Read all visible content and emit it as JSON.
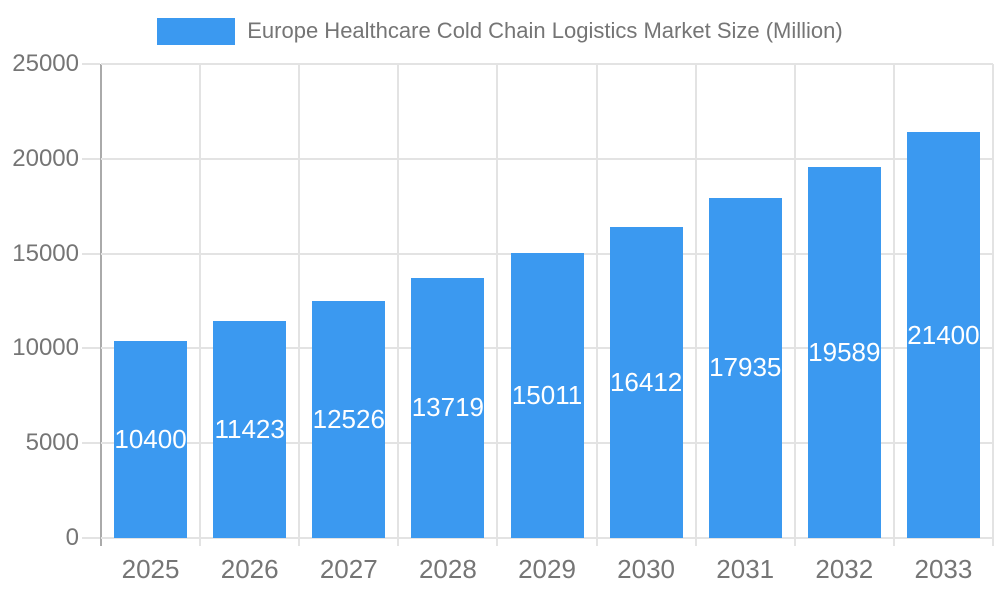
{
  "chart_data": {
    "type": "bar",
    "title": "Europe Healthcare Cold Chain Logistics Market Size (Million)",
    "legend": {
      "position": "top",
      "entries": [
        "Europe Healthcare Cold Chain Logistics Market Size (Million)"
      ]
    },
    "categories": [
      "2025",
      "2026",
      "2027",
      "2028",
      "2029",
      "2030",
      "2031",
      "2032",
      "2033"
    ],
    "values": [
      10400,
      11423,
      12526,
      13719,
      15011,
      16412,
      17935,
      19589,
      21400
    ],
    "value_labels": [
      "10400",
      "11423",
      "12526",
      "13719",
      "15011",
      "16412",
      "17935",
      "19589",
      "21400"
    ],
    "xlabel": "",
    "ylabel": "",
    "ylim": [
      0,
      25000
    ],
    "y_ticks": [
      0,
      5000,
      10000,
      15000,
      20000,
      25000
    ],
    "y_tick_labels": [
      "0",
      "5000",
      "10000",
      "15000",
      "20000",
      "25000"
    ],
    "grid": "both",
    "value_label_position": "inside-center",
    "colors": {
      "bar": "#3B99F0",
      "grid": "#e3e3e3",
      "axis": "#aaaaaa",
      "text": "#757575",
      "value_label": "#ffffff",
      "background": "#ffffff"
    }
  }
}
